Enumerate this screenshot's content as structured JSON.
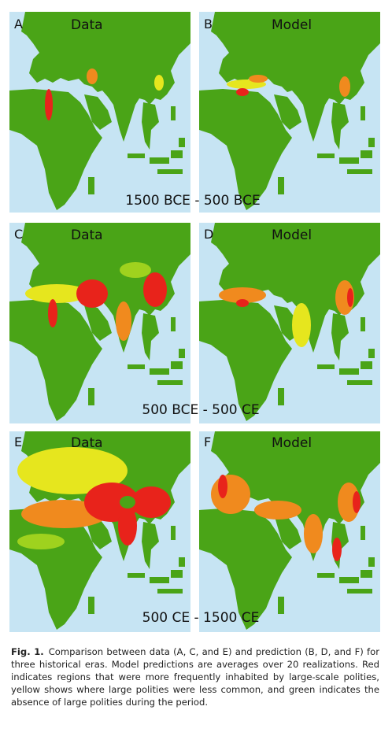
{
  "panels": [
    {
      "letter": "A",
      "label": "Data"
    },
    {
      "letter": "B",
      "label": "Model"
    },
    {
      "letter": "C",
      "label": "Data"
    },
    {
      "letter": "D",
      "label": "Model"
    },
    {
      "letter": "E",
      "label": "Data"
    },
    {
      "letter": "F",
      "label": "Model"
    }
  ],
  "eras": [
    "1500 BCE - 500 BCE",
    "500 BCE - 500 CE",
    "500 CE - 1500 CE"
  ],
  "caption": {
    "label": "Fig. 1.",
    "text": "Comparison between data (A, C, and E) and prediction (B, D, and F) for three historical eras. Model predictions are averages over 20 realizations. Red indicates regions that were more frequently inhabited by large-scale polities, yellow shows where large polities were less common, and green indicates the absence of large polities during the period."
  }
}
